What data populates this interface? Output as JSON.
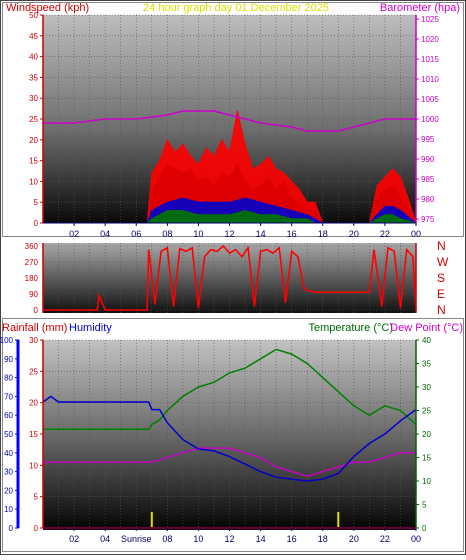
{
  "top": {
    "left_title": "Windspeed (kph)",
    "center_title": "24 hour graph day   01 December 2025",
    "right_title": "Barometer (hpa)",
    "left_color": "#cc0000",
    "center_color": "#e0e000",
    "right_color": "#cc00cc"
  },
  "wind_dir_labels": [
    "N",
    "W",
    "S",
    "E",
    "N"
  ],
  "bottom": {
    "rain_label": "Rainfall (mm)",
    "humidity_label": "Humidity",
    "temp_label": "Temperature (°C)",
    "dew_label": "Dew Point (°C)",
    "sunrise_label": "Sunrise",
    "rain_color": "#cc0000",
    "humidity_color": "#0000cc",
    "temp_color": "#006600",
    "dew_color": "#cc00cc"
  },
  "chart_data": [
    {
      "type": "line",
      "panel": "windspeed_barometer",
      "x_ticks": [
        "02",
        "04",
        "06",
        "08",
        "10",
        "12",
        "14",
        "16",
        "18",
        "20",
        "22",
        "00"
      ],
      "y_left_ticks": [
        0,
        5,
        10,
        15,
        20,
        25,
        30,
        35,
        40,
        45,
        50
      ],
      "y_left_range": [
        0,
        50
      ],
      "y_right_ticks": [
        975,
        980,
        985,
        990,
        995,
        1000,
        1005,
        1010,
        1015,
        1020,
        1025
      ],
      "y_right_range": [
        974,
        1026
      ],
      "series": [
        {
          "name": "Windspeed (kph)",
          "axis": "left",
          "color": "#ff0000",
          "x": [
            0,
            6.7,
            7,
            7.5,
            8,
            8.5,
            9,
            9.5,
            10,
            10.5,
            11,
            11.5,
            12,
            12.5,
            13,
            13.5,
            14,
            14.5,
            15,
            15.5,
            16,
            16.5,
            17,
            17.5,
            18,
            18.5,
            19,
            19.5,
            20,
            20.5,
            21,
            21.5,
            22,
            22.5,
            23,
            23.5,
            24
          ],
          "y": [
            0,
            0,
            8,
            11,
            14,
            13,
            12,
            13,
            10,
            11,
            9,
            12,
            11,
            14,
            10,
            8,
            9,
            11,
            8,
            10,
            6,
            4,
            3,
            3,
            0,
            0,
            0,
            0,
            0,
            0,
            0,
            6,
            8,
            9,
            6,
            3,
            0
          ]
        },
        {
          "name": "Wind gust",
          "axis": "left",
          "color": "#ff0000",
          "x": [
            0,
            6.7,
            7,
            7.5,
            8,
            8.5,
            9,
            9.5,
            10,
            10.5,
            11,
            11.5,
            12,
            12.5,
            13,
            13.5,
            14,
            14.5,
            15,
            15.5,
            16,
            16.5,
            17,
            17.5,
            18,
            18.5,
            19,
            19.5,
            20,
            20.5,
            21,
            21.5,
            22,
            22.5,
            23,
            23.5,
            24
          ],
          "y": [
            0,
            0,
            12,
            15,
            20,
            17,
            19,
            16,
            14,
            18,
            16,
            20,
            17,
            27,
            19,
            13,
            14,
            16,
            13,
            12,
            10,
            8,
            5,
            5,
            0,
            0,
            0,
            0,
            0,
            0,
            0,
            9,
            11,
            13,
            11,
            6,
            0
          ]
        },
        {
          "name": "Wind average",
          "axis": "left",
          "color": "#0000cc",
          "x": [
            0,
            6.7,
            7,
            8,
            9,
            10,
            11,
            12,
            13,
            14,
            15,
            16,
            17,
            17.5,
            18,
            21,
            21.5,
            22,
            22.5,
            23,
            24
          ],
          "y": [
            0,
            0,
            3,
            5,
            6,
            5,
            5,
            5,
            6,
            5,
            4,
            3,
            2,
            1,
            0,
            0,
            2,
            4,
            4,
            3,
            0
          ]
        },
        {
          "name": "Wind minimum",
          "axis": "left",
          "color": "#007700",
          "x": [
            0,
            6.7,
            7,
            8,
            9,
            10,
            11,
            12,
            13,
            14,
            15,
            16,
            17,
            17.5,
            18,
            21,
            21.5,
            22,
            22.5,
            23,
            24
          ],
          "y": [
            0,
            0,
            1,
            3,
            3,
            2,
            2,
            2,
            3,
            2,
            2,
            1,
            1,
            0,
            0,
            0,
            1,
            2,
            2,
            1,
            0
          ]
        },
        {
          "name": "Barometer (hpa)",
          "axis": "right",
          "color": "#cc00cc",
          "x": [
            0,
            2,
            4,
            6,
            8,
            9,
            10,
            11,
            12,
            14,
            16,
            17,
            18,
            19,
            20,
            22,
            23,
            24
          ],
          "y": [
            999,
            999,
            1000,
            1000,
            1001,
            1002,
            1002,
            1002,
            1001,
            999,
            998,
            997,
            997,
            997,
            998,
            1000,
            1000,
            1000
          ]
        }
      ]
    },
    {
      "type": "scatter",
      "panel": "wind_direction",
      "x_ticks": [
        "02",
        "04",
        "06",
        "08",
        "10",
        "12",
        "14",
        "16",
        "18",
        "20",
        "22",
        "00"
      ],
      "y_ticks": [
        0,
        90,
        180,
        270,
        360
      ],
      "y_range": [
        0,
        360
      ],
      "series": [
        {
          "name": "Wind direction",
          "color": "#ff0000",
          "x": [
            0,
            3.5,
            3.6,
            4,
            6.7,
            6.8,
            7.2,
            7.6,
            8,
            8.4,
            8.8,
            9.2,
            9.6,
            10,
            10.4,
            10.8,
            11.2,
            11.6,
            12,
            12.4,
            12.8,
            13.2,
            13.6,
            14,
            14.4,
            14.8,
            15.2,
            15.6,
            16,
            16.4,
            16.8,
            17,
            17.5,
            18,
            19,
            20,
            21,
            21.3,
            21.8,
            22.2,
            22.6,
            23,
            23.4,
            23.8,
            24
          ],
          "y": [
            0,
            0,
            80,
            0,
            0,
            340,
            30,
            330,
            350,
            20,
            345,
            330,
            350,
            10,
            300,
            340,
            330,
            360,
            320,
            340,
            300,
            350,
            20,
            330,
            340,
            320,
            350,
            40,
            330,
            300,
            120,
            110,
            100,
            100,
            100,
            100,
            100,
            340,
            20,
            350,
            330,
            10,
            340,
            300,
            0
          ]
        }
      ]
    },
    {
      "type": "line",
      "panel": "rain_humidity_temperature",
      "x_ticks": [
        "02",
        "04",
        "Sunrise",
        "08",
        "10",
        "12",
        "14",
        "16",
        "18",
        "20",
        "22",
        "00"
      ],
      "y_humidity_ticks": [
        0,
        10,
        20,
        30,
        40,
        50,
        60,
        70,
        80,
        90,
        100
      ],
      "y_humidity_range": [
        0,
        100
      ],
      "y_rain_ticks": [
        0,
        5,
        10,
        15,
        20,
        25,
        30
      ],
      "y_rain_range": [
        0,
        30
      ],
      "y_temp_ticks": [
        0,
        5,
        10,
        15,
        20,
        25,
        30,
        35,
        40
      ],
      "y_temp_range": [
        0,
        40
      ],
      "sunrise_hour": 7.0,
      "sunset_hour": 19.0,
      "series": [
        {
          "name": "Humidity",
          "axis": "humidity",
          "color": "#0000cc",
          "x": [
            0,
            0.5,
            1,
            2,
            3,
            4,
            5,
            6,
            6.8,
            7,
            7.5,
            8,
            9,
            10,
            11,
            12,
            13,
            14,
            15,
            16,
            17,
            18,
            19,
            20,
            21,
            22,
            23,
            23.5,
            24
          ],
          "y": [
            67,
            70,
            67,
            67,
            67,
            67,
            67,
            67,
            67,
            63,
            63,
            56,
            47,
            42,
            41,
            38,
            34,
            30,
            27,
            26,
            25,
            26,
            29,
            38,
            45,
            50,
            57,
            60,
            63
          ]
        },
        {
          "name": "Temperature (°C)",
          "axis": "temp",
          "color": "#008000",
          "x": [
            0,
            1,
            2,
            3,
            4,
            5,
            6,
            6.8,
            7,
            7.5,
            8,
            9,
            10,
            11,
            12,
            13,
            14,
            15,
            16,
            17,
            18,
            19,
            20,
            21,
            22,
            23,
            24
          ],
          "y": [
            21,
            21,
            21,
            21,
            21,
            21,
            21,
            21,
            22,
            23,
            25,
            28,
            30,
            31,
            33,
            34,
            36,
            38,
            37,
            35,
            32,
            29,
            26,
            24,
            26,
            25,
            22
          ]
        },
        {
          "name": "Dew Point (°C)",
          "axis": "temp",
          "color": "#cc00cc",
          "x": [
            0,
            1,
            2,
            3,
            4,
            5,
            6,
            7,
            8,
            9,
            10,
            11,
            12,
            13,
            14,
            15,
            16,
            17,
            18,
            19,
            20,
            21,
            22,
            23,
            24
          ],
          "y": [
            14,
            14,
            14,
            14,
            14,
            14,
            14,
            14,
            15,
            16,
            17,
            17,
            17,
            16,
            15,
            13,
            12,
            11,
            12,
            13,
            14,
            14,
            15,
            16,
            16
          ]
        },
        {
          "name": "Rainfall (mm)",
          "axis": "rain",
          "color": "#cc0000",
          "x": [
            0,
            24
          ],
          "y": [
            0,
            0
          ]
        }
      ]
    }
  ]
}
